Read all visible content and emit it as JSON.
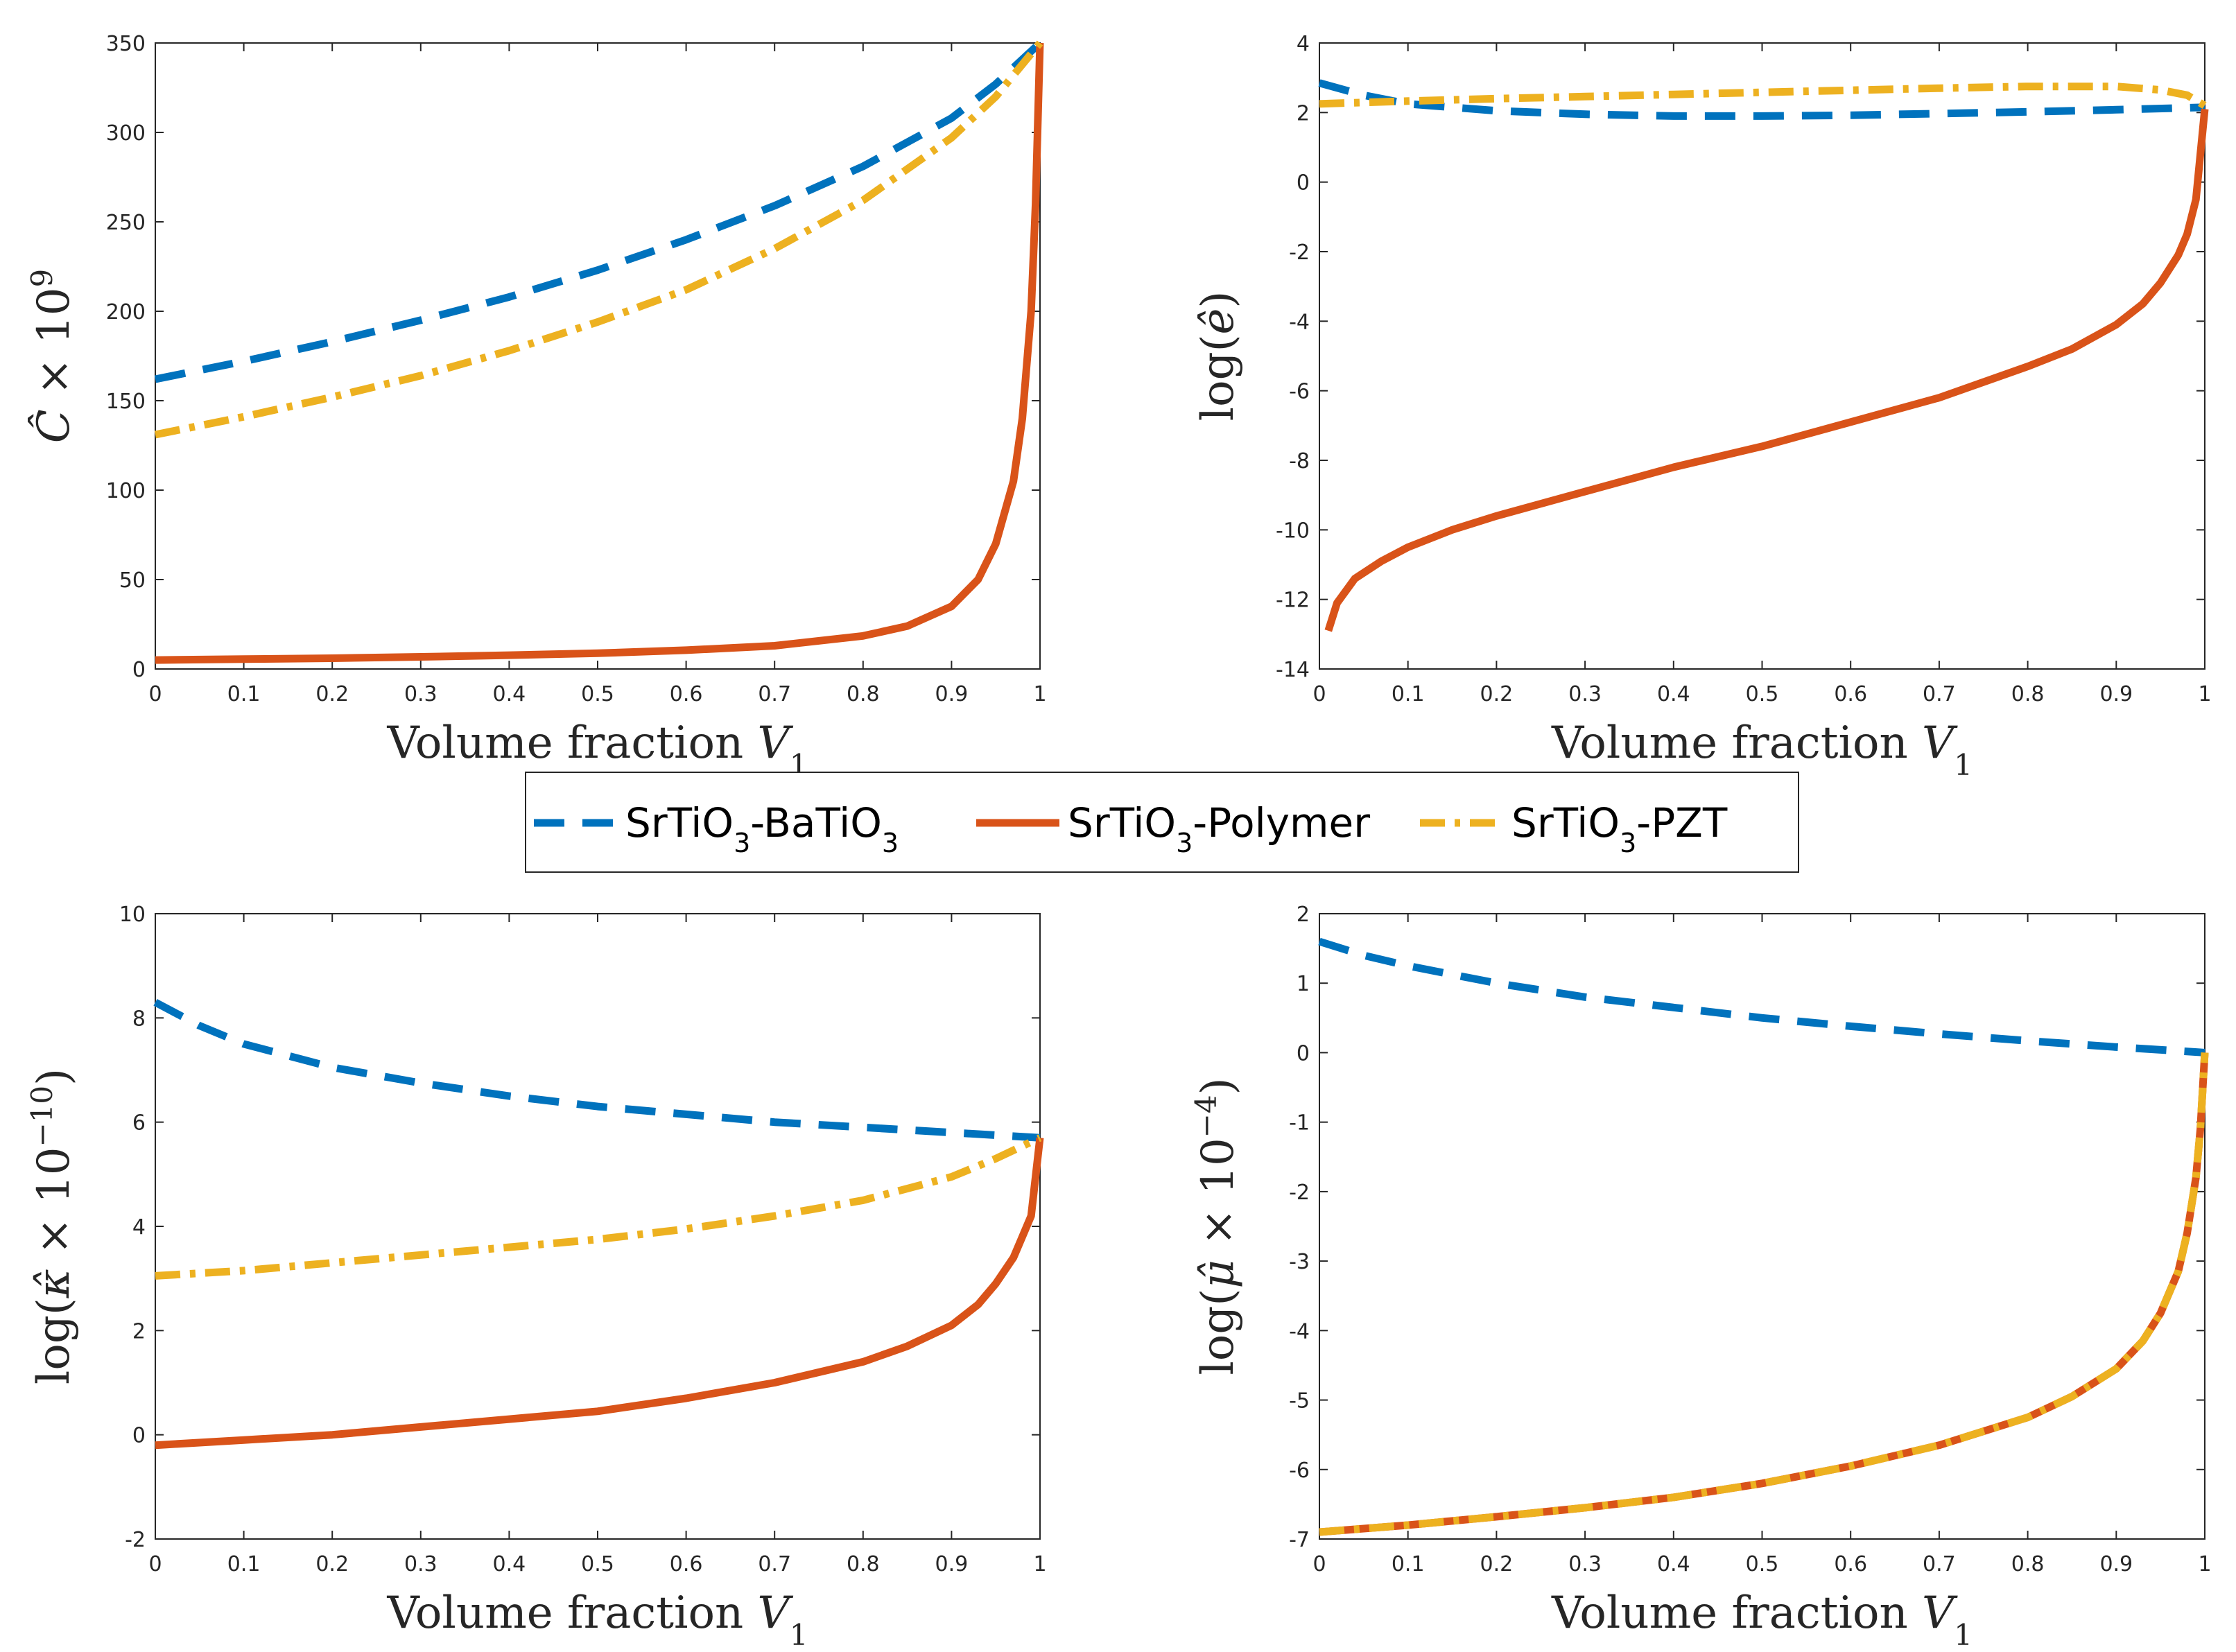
{
  "legend": {
    "entries": [
      {
        "label": "SrTiO3-BaTiO3",
        "parts": [
          [
            "SrTiO",
            ""
          ],
          [
            "3",
            "sub"
          ],
          [
            "-BaTiO",
            ""
          ],
          [
            "3",
            "sub"
          ]
        ],
        "color": "#0072BD",
        "dash": "dashed"
      },
      {
        "label": "SrTiO3-Polymer",
        "parts": [
          [
            "SrTiO",
            ""
          ],
          [
            "3",
            "sub"
          ],
          [
            "-Polymer",
            ""
          ]
        ],
        "color": "#D95319",
        "dash": "solid"
      },
      {
        "label": "SrTiO3-PZT",
        "parts": [
          [
            "SrTiO",
            ""
          ],
          [
            "3",
            "sub"
          ],
          [
            "-PZT",
            ""
          ]
        ],
        "color": "#EDB120",
        "dash": "dashdot"
      }
    ]
  },
  "chart_data": [
    {
      "type": "line",
      "xlabel": "Volume fraction V1",
      "xlabel_parts": [
        [
          "Volume fraction ",
          ""
        ],
        [
          "V",
          "it"
        ],
        [
          "1",
          "sub"
        ]
      ],
      "ylabel": "Ĉ × 10^9",
      "ylabel_parts": [
        [
          "Ĉ",
          "it"
        ],
        [
          " × 10",
          ""
        ],
        [
          "9",
          "sup"
        ]
      ],
      "xlim": [
        0,
        1
      ],
      "ylim": [
        0,
        350
      ],
      "xticks": [
        "0",
        "0.1",
        "0.2",
        "0.3",
        "0.4",
        "0.5",
        "0.6",
        "0.7",
        "0.8",
        "0.9",
        "1"
      ],
      "yticks": [
        "0",
        "50",
        "100",
        "150",
        "200",
        "250",
        "300",
        "350"
      ],
      "series": [
        {
          "name": "SrTiO3-BaTiO3",
          "x": [
            0,
            0.1,
            0.2,
            0.3,
            0.4,
            0.5,
            0.6,
            0.7,
            0.8,
            0.9,
            0.95,
            1.0
          ],
          "values": [
            162,
            172,
            183,
            195,
            208,
            223,
            240,
            259,
            281,
            308,
            327,
            350
          ]
        },
        {
          "name": "SrTiO3-Polymer",
          "x": [
            0,
            0.1,
            0.2,
            0.3,
            0.4,
            0.5,
            0.6,
            0.7,
            0.8,
            0.85,
            0.9,
            0.93,
            0.95,
            0.97,
            0.98,
            0.99,
            0.995,
            1.0
          ],
          "values": [
            5,
            5.5,
            6,
            6.8,
            7.7,
            8.8,
            10.5,
            13,
            18.5,
            24,
            35,
            50,
            70,
            105,
            140,
            200,
            260,
            350
          ]
        },
        {
          "name": "SrTiO3-PZT",
          "x": [
            0,
            0.1,
            0.2,
            0.3,
            0.4,
            0.5,
            0.6,
            0.7,
            0.8,
            0.9,
            0.95,
            1.0
          ],
          "values": [
            131,
            141,
            152,
            164,
            178,
            194,
            212,
            235,
            262,
            297,
            320,
            350
          ]
        }
      ]
    },
    {
      "type": "line",
      "xlabel": "Volume fraction V1",
      "xlabel_parts": [
        [
          "Volume fraction ",
          ""
        ],
        [
          "V",
          "it"
        ],
        [
          "1",
          "sub"
        ]
      ],
      "ylabel": "log(ê)",
      "ylabel_parts": [
        [
          "log(",
          ""
        ],
        [
          "ê",
          "it"
        ],
        [
          ")",
          ""
        ]
      ],
      "xlim": [
        0,
        1
      ],
      "ylim": [
        -14,
        4
      ],
      "xticks": [
        "0",
        "0.1",
        "0.2",
        "0.3",
        "0.4",
        "0.5",
        "0.6",
        "0.7",
        "0.8",
        "0.9",
        "1"
      ],
      "yticks": [
        "-14",
        "-12",
        "-10",
        "-8",
        "-6",
        "-4",
        "-2",
        "0",
        "2",
        "4"
      ],
      "series": [
        {
          "name": "SrTiO3-BaTiO3",
          "x": [
            0,
            0.05,
            0.1,
            0.2,
            0.3,
            0.4,
            0.5,
            0.6,
            0.7,
            0.8,
            0.9,
            1.0
          ],
          "values": [
            2.85,
            2.5,
            2.25,
            2.05,
            1.95,
            1.9,
            1.9,
            1.92,
            1.97,
            2.02,
            2.08,
            2.15
          ]
        },
        {
          "name": "SrTiO3-Polymer",
          "x": [
            0.01,
            0.02,
            0.04,
            0.07,
            0.1,
            0.15,
            0.2,
            0.3,
            0.4,
            0.5,
            0.6,
            0.7,
            0.8,
            0.85,
            0.9,
            0.93,
            0.95,
            0.97,
            0.98,
            0.99,
            1.0
          ],
          "values": [
            -12.9,
            -12.1,
            -11.4,
            -10.9,
            -10.5,
            -10.0,
            -9.6,
            -8.9,
            -8.2,
            -7.6,
            -6.9,
            -6.2,
            -5.3,
            -4.8,
            -4.1,
            -3.5,
            -2.9,
            -2.1,
            -1.5,
            -0.5,
            2.1
          ]
        },
        {
          "name": "SrTiO3-PZT",
          "x": [
            0,
            0.1,
            0.2,
            0.3,
            0.4,
            0.5,
            0.6,
            0.7,
            0.8,
            0.9,
            0.95,
            0.98,
            1.0
          ],
          "values": [
            2.25,
            2.33,
            2.4,
            2.46,
            2.52,
            2.58,
            2.64,
            2.7,
            2.75,
            2.75,
            2.65,
            2.5,
            2.2
          ]
        }
      ]
    },
    {
      "type": "line",
      "xlabel": "Volume fraction V1",
      "xlabel_parts": [
        [
          "Volume fraction ",
          ""
        ],
        [
          "V",
          "it"
        ],
        [
          "1",
          "sub"
        ]
      ],
      "ylabel": "log(κ̂ × 10^−10)",
      "ylabel_parts": [
        [
          "log(",
          ""
        ],
        [
          "κ̂",
          "it"
        ],
        [
          " × 10",
          ""
        ],
        [
          "−10",
          "sup"
        ],
        [
          ")",
          ""
        ]
      ],
      "xlim": [
        0,
        1
      ],
      "ylim": [
        -2,
        10
      ],
      "xticks": [
        "0",
        "0.1",
        "0.2",
        "0.3",
        "0.4",
        "0.5",
        "0.6",
        "0.7",
        "0.8",
        "0.9",
        "1"
      ],
      "yticks": [
        "-2",
        "0",
        "2",
        "4",
        "6",
        "8",
        "10"
      ],
      "series": [
        {
          "name": "SrTiO3-BaTiO3",
          "x": [
            0,
            0.05,
            0.1,
            0.2,
            0.3,
            0.4,
            0.5,
            0.6,
            0.7,
            0.8,
            0.9,
            1.0
          ],
          "values": [
            8.3,
            7.85,
            7.5,
            7.05,
            6.75,
            6.5,
            6.3,
            6.15,
            6.0,
            5.9,
            5.8,
            5.7
          ]
        },
        {
          "name": "SrTiO3-Polymer",
          "x": [
            0,
            0.1,
            0.2,
            0.3,
            0.4,
            0.5,
            0.6,
            0.7,
            0.8,
            0.85,
            0.9,
            0.93,
            0.95,
            0.97,
            0.98,
            0.99,
            1.0
          ],
          "values": [
            -0.2,
            -0.1,
            0.0,
            0.15,
            0.3,
            0.45,
            0.7,
            1.0,
            1.4,
            1.7,
            2.1,
            2.5,
            2.9,
            3.4,
            3.8,
            4.2,
            5.7
          ]
        },
        {
          "name": "SrTiO3-PZT",
          "x": [
            0,
            0.1,
            0.2,
            0.3,
            0.4,
            0.5,
            0.6,
            0.7,
            0.8,
            0.9,
            0.95,
            1.0
          ],
          "values": [
            3.05,
            3.15,
            3.3,
            3.45,
            3.6,
            3.75,
            3.95,
            4.2,
            4.5,
            4.95,
            5.3,
            5.7
          ]
        }
      ]
    },
    {
      "type": "line",
      "xlabel": "Volume fraction V1",
      "xlabel_parts": [
        [
          "Volume fraction ",
          ""
        ],
        [
          "V",
          "it"
        ],
        [
          "1",
          "sub"
        ]
      ],
      "ylabel": "log(μ̂ × 10^−4)",
      "ylabel_parts": [
        [
          "log(",
          ""
        ],
        [
          "μ̂",
          "it"
        ],
        [
          " × 10",
          ""
        ],
        [
          "−4",
          "sup"
        ],
        [
          ")",
          ""
        ]
      ],
      "xlim": [
        0,
        1
      ],
      "ylim": [
        -7,
        2
      ],
      "xticks": [
        "0",
        "0.1",
        "0.2",
        "0.3",
        "0.4",
        "0.5",
        "0.6",
        "0.7",
        "0.8",
        "0.9",
        "1"
      ],
      "yticks": [
        "-7",
        "-6",
        "-5",
        "-4",
        "-3",
        "-2",
        "-1",
        "0",
        "1",
        "2"
      ],
      "series": [
        {
          "name": "SrTiO3-BaTiO3",
          "x": [
            0,
            0.05,
            0.1,
            0.2,
            0.3,
            0.4,
            0.5,
            0.6,
            0.7,
            0.8,
            0.9,
            1.0
          ],
          "values": [
            1.6,
            1.4,
            1.25,
            1.0,
            0.8,
            0.65,
            0.5,
            0.38,
            0.27,
            0.17,
            0.08,
            0.0
          ]
        },
        {
          "name": "SrTiO3-Polymer",
          "x": [
            0,
            0.1,
            0.2,
            0.3,
            0.4,
            0.5,
            0.6,
            0.7,
            0.8,
            0.85,
            0.9,
            0.93,
            0.95,
            0.97,
            0.98,
            0.99,
            0.995,
            1.0
          ],
          "values": [
            -6.9,
            -6.8,
            -6.68,
            -6.55,
            -6.4,
            -6.2,
            -5.95,
            -5.65,
            -5.25,
            -4.95,
            -4.55,
            -4.15,
            -3.75,
            -3.15,
            -2.6,
            -1.8,
            -1.1,
            0.0
          ]
        },
        {
          "name": "SrTiO3-PZT",
          "x": [
            0,
            0.1,
            0.2,
            0.3,
            0.4,
            0.5,
            0.6,
            0.7,
            0.8,
            0.85,
            0.9,
            0.93,
            0.95,
            0.97,
            0.98,
            0.99,
            0.995,
            1.0
          ],
          "values": [
            -6.9,
            -6.8,
            -6.68,
            -6.55,
            -6.4,
            -6.2,
            -5.95,
            -5.65,
            -5.25,
            -4.95,
            -4.55,
            -4.15,
            -3.75,
            -3.15,
            -2.6,
            -1.8,
            -1.1,
            0.0
          ]
        }
      ]
    }
  ]
}
